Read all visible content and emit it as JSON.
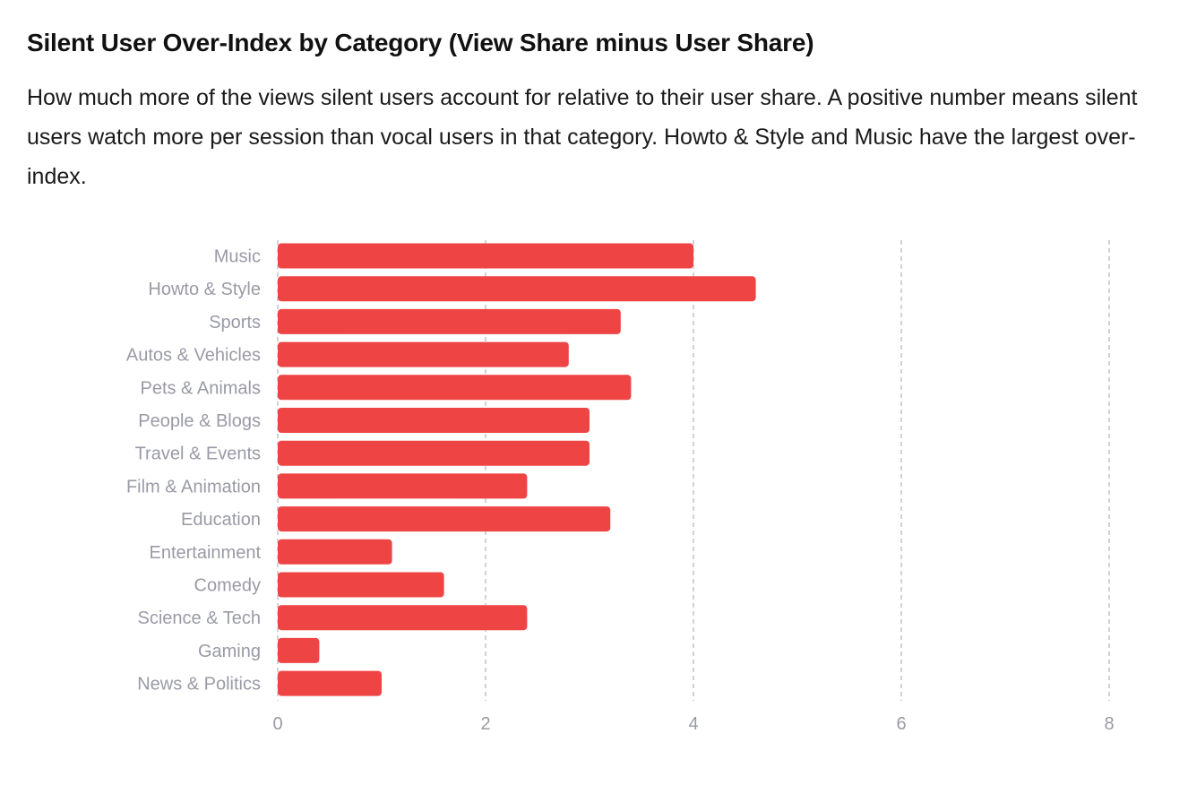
{
  "chart_data": {
    "type": "bar",
    "orientation": "horizontal",
    "title": "Silent User Over-Index by Category (View Share minus User Share)",
    "subtitle": "How much more of the views silent users account for relative to their user share. A positive number means silent users watch more per session than vocal users in that category. Howto & Style and Music have the largest over-index.",
    "categories": [
      "Music",
      "Howto & Style",
      "Sports",
      "Autos & Vehicles",
      "Pets & Animals",
      "People & Blogs",
      "Travel & Events",
      "Film & Animation",
      "Education",
      "Entertainment",
      "Comedy",
      "Science & Tech",
      "Gaming",
      "News & Politics"
    ],
    "values": [
      4.0,
      4.6,
      3.3,
      2.8,
      3.4,
      3.0,
      3.0,
      2.4,
      3.2,
      1.1,
      1.6,
      2.4,
      0.4,
      1.0
    ],
    "xlim": [
      0,
      8
    ],
    "xticks": [
      0,
      2,
      4,
      6,
      8
    ],
    "xlabel": "",
    "ylabel": "",
    "grid": "vertical dashed",
    "legend": "none",
    "colors": {
      "bar": "#ef4444",
      "grid": "#c4c4c8",
      "axis_text": "#9a9aa6",
      "title": "#111111"
    }
  }
}
